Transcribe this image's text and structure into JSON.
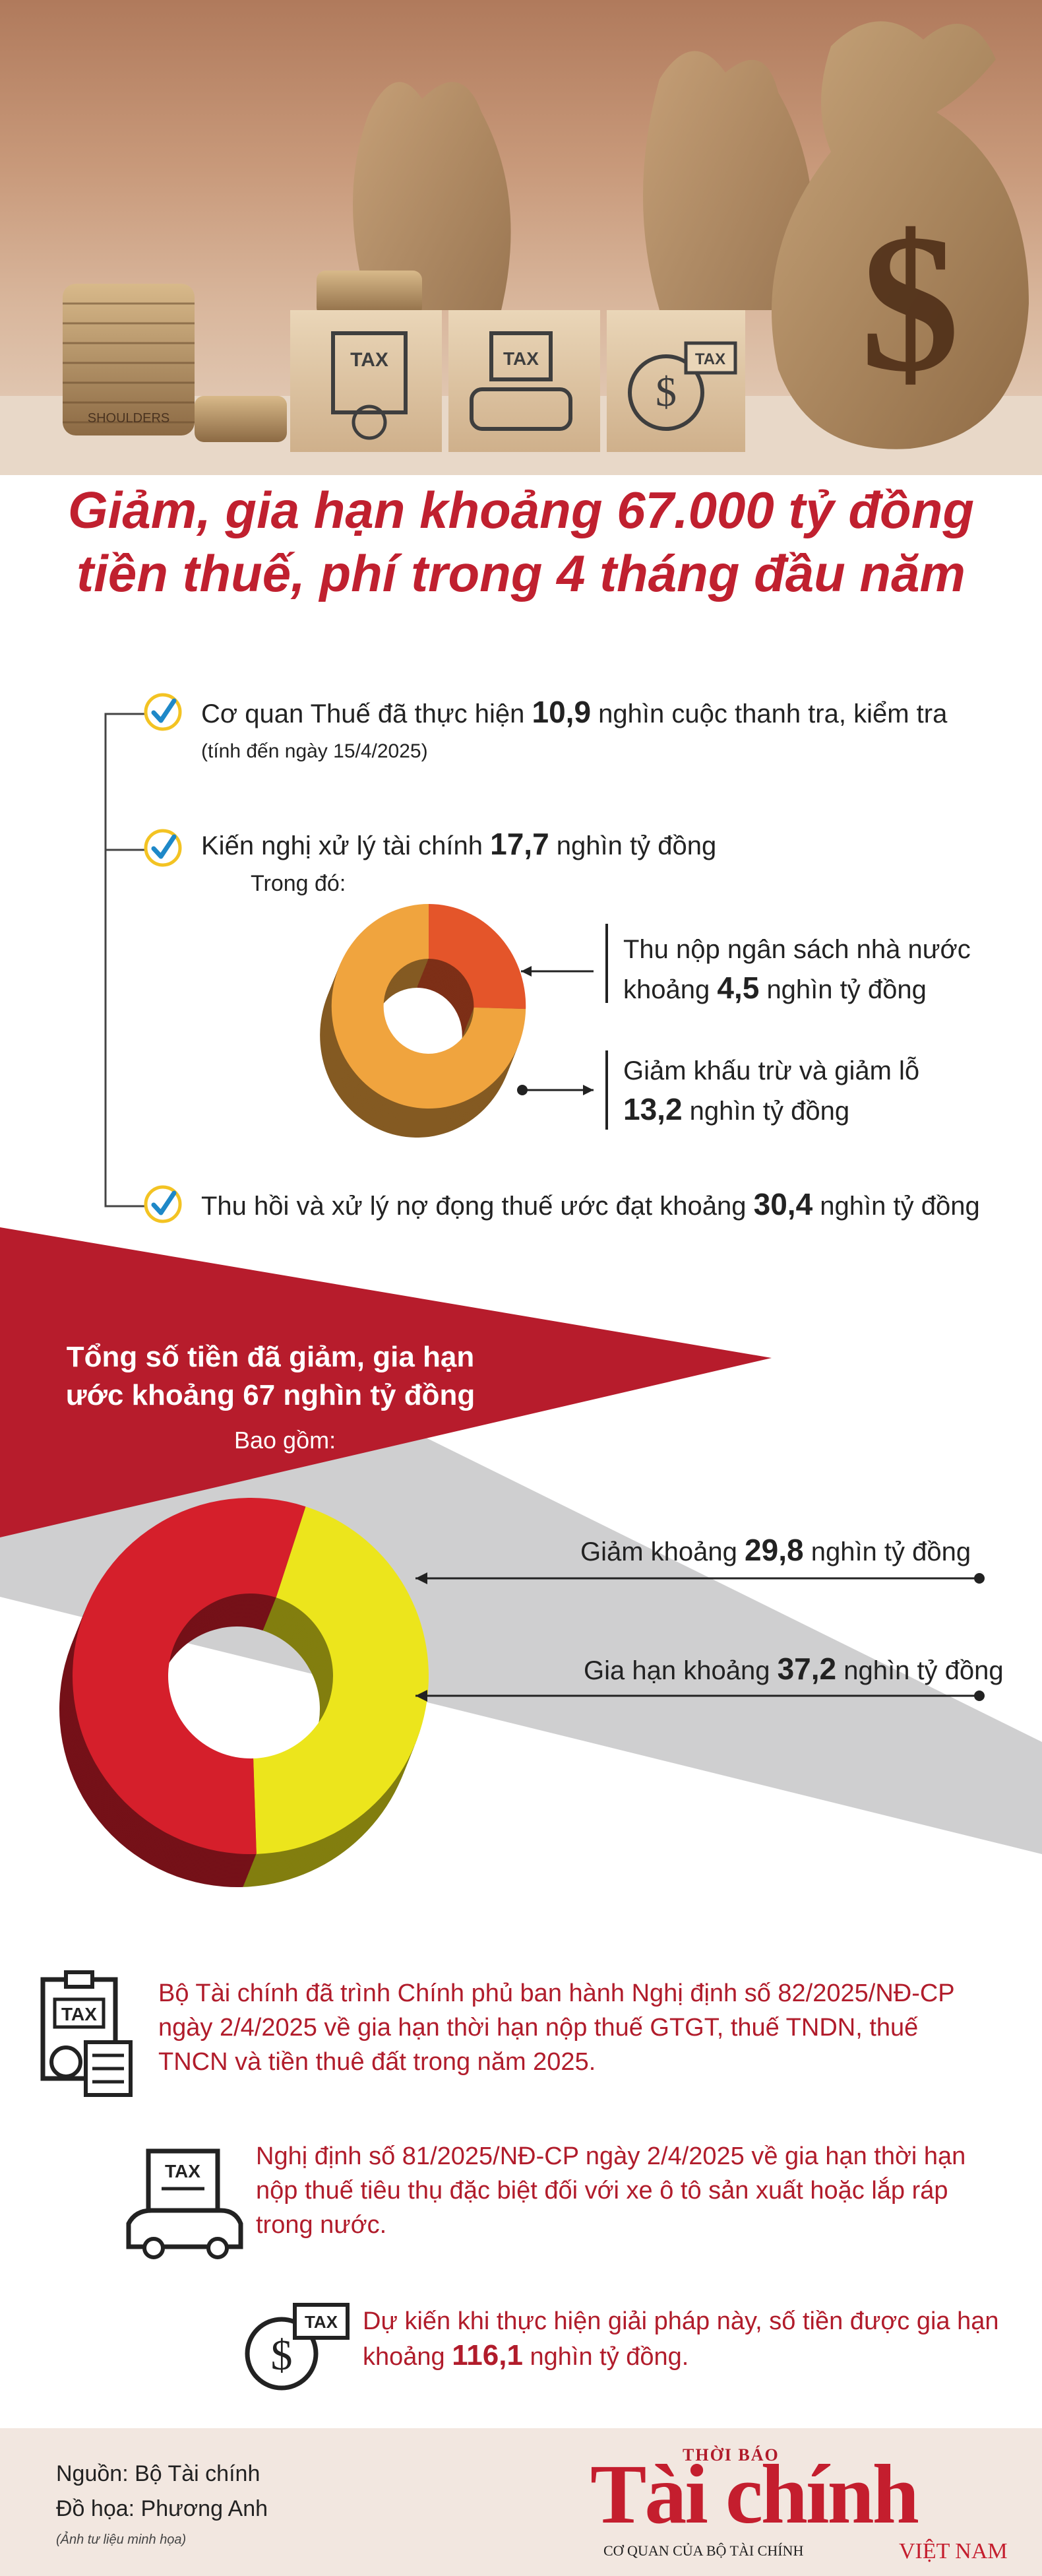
{
  "title": {
    "line1": "Giảm, gia hạn khoảng 67.000 tỷ đồng",
    "line2": "tiền thuế, phí trong 4 tháng đầu năm"
  },
  "hero": {
    "box_label": "TAX",
    "coins_label": "SHOULDERS"
  },
  "section1": {
    "item1": {
      "pre": "Cơ quan Thuế đã thực hiện",
      "value": "10,9",
      "post": "nghìn cuộc thanh tra, kiểm tra",
      "note": "(tính đến ngày 15/4/2025)"
    },
    "item2": {
      "pre": "Kiến nghị xử lý tài chính",
      "value": "17,7",
      "post": "nghìn tỷ đồng",
      "sub": "Trong đó:"
    },
    "item3": {
      "pre": "Thu hồi và xử lý nợ đọng thuế ước đạt khoảng",
      "value": "30,4",
      "post": "nghìn tỷ đồng"
    },
    "donut_labels": {
      "a_line1": "Thu nộp ngân sách nhà nước",
      "a_pre": "khoảng",
      "a_value": "4,5",
      "a_post": "nghìn tỷ đồng",
      "b_line1": "Giảm khấu trừ và giảm lỗ",
      "b_value": "13,2",
      "b_post": "nghìn tỷ đồng"
    }
  },
  "section2": {
    "heading_line1": "Tổng số tiền đã giảm, gia hạn",
    "heading_line2": "ước khoảng 67 nghìn tỷ đồng",
    "sub": "Bao gồm:",
    "label_a_pre": "Giảm khoảng",
    "label_a_value": "29,8",
    "label_a_post": "nghìn tỷ đồng",
    "label_b_pre": "Gia hạn khoảng",
    "label_b_value": "37,2",
    "label_b_post": "nghìn tỷ đồng"
  },
  "chart_data": [
    {
      "type": "pie",
      "categories": [
        "Thu nộp ngân sách nhà nước",
        "Giảm khấu trừ và giảm lỗ"
      ],
      "values": [
        4.5,
        13.2
      ],
      "colors": [
        "#e4552a",
        "#f0a43e"
      ]
    },
    {
      "type": "pie",
      "categories": [
        "Giảm",
        "Gia hạn"
      ],
      "values": [
        29.8,
        37.2
      ],
      "colors": [
        "#ece51c",
        "#d51f2b"
      ]
    }
  ],
  "notes": {
    "note1": "Bộ Tài chính đã trình Chính phủ ban hành Nghị định số 82/2025/NĐ-CP ngày 2/4/2025 về gia hạn thời hạn nộp thuế GTGT, thuế TNDN, thuế TNCN và tiền thuê đất trong năm 2025.",
    "note2": "Nghị định số 81/2025/NĐ-CP ngày 2/4/2025 về gia hạn thời hạn nộp thuế tiêu thụ đặc biệt đối với xe ô tô sản xuất hoặc lắp ráp trong nước.",
    "note3_pre": "Dự kiến khi thực hiện giải pháp này, số tiền được gia hạn khoảng",
    "note3_value": "116,1",
    "note3_post": "nghìn tỷ đồng.",
    "tax_label": "TAX"
  },
  "footer": {
    "source": "Nguồn: Bộ Tài chính",
    "graphic": "Đồ họa: Phương Anh",
    "photo_note": "(Ảnh tư liệu minh họa)",
    "logo_top": "THỜI BÁO",
    "logo_main": "Tài chính",
    "logo_sub": "CƠ QUAN CỦA BỘ TÀI CHÍNH",
    "logo_side": "VIỆT NAM"
  },
  "colors": {
    "title_red": "#c0202f",
    "crimson": "#b71c2c",
    "gray_band": "#cfcfd0",
    "check_blue": "#1e88c8",
    "check_yellow": "#f3c323"
  }
}
